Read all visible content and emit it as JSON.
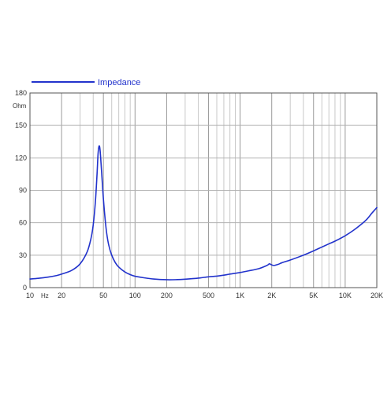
{
  "chart_data": {
    "type": "line",
    "title": "",
    "xlabel": "",
    "ylabel": "",
    "x_scale": "log",
    "xlim": [
      10,
      20000
    ],
    "ylim": [
      0,
      180
    ],
    "y_unit": "Ohm",
    "x_unit": "Hz",
    "grid": true,
    "legend_position": "top-left",
    "x_ticks": [
      {
        "value": 10,
        "label": "10"
      },
      {
        "value": 20,
        "label": "20"
      },
      {
        "value": 50,
        "label": "50"
      },
      {
        "value": 100,
        "label": "100"
      },
      {
        "value": 200,
        "label": "200"
      },
      {
        "value": 500,
        "label": "500"
      },
      {
        "value": 1000,
        "label": "1K"
      },
      {
        "value": 2000,
        "label": "2K"
      },
      {
        "value": 5000,
        "label": "5K"
      },
      {
        "value": 10000,
        "label": "10K"
      },
      {
        "value": 20000,
        "label": "20K"
      }
    ],
    "y_ticks": [
      {
        "value": 0,
        "label": "0"
      },
      {
        "value": 30,
        "label": "30"
      },
      {
        "value": 60,
        "label": "60"
      },
      {
        "value": 90,
        "label": "90"
      },
      {
        "value": 120,
        "label": "120"
      },
      {
        "value": 150,
        "label": "150"
      },
      {
        "value": 180,
        "label": "180"
      }
    ],
    "series": [
      {
        "name": "Impedance",
        "color": "#2233cc",
        "points": [
          [
            10,
            8
          ],
          [
            12,
            8.6
          ],
          [
            15,
            9.8
          ],
          [
            18,
            11.2
          ],
          [
            20,
            12.5
          ],
          [
            25,
            16
          ],
          [
            30,
            22
          ],
          [
            35,
            33
          ],
          [
            38,
            45
          ],
          [
            40,
            58
          ],
          [
            42,
            80
          ],
          [
            43.5,
            105
          ],
          [
            44.5,
            124
          ],
          [
            45.5,
            131
          ],
          [
            46.5,
            127
          ],
          [
            48,
            108
          ],
          [
            50,
            82
          ],
          [
            53,
            55
          ],
          [
            56,
            40
          ],
          [
            60,
            30
          ],
          [
            65,
            23
          ],
          [
            70,
            19
          ],
          [
            80,
            14.5
          ],
          [
            90,
            12
          ],
          [
            100,
            10.5
          ],
          [
            120,
            9.2
          ],
          [
            150,
            8
          ],
          [
            200,
            7.3
          ],
          [
            250,
            7.4
          ],
          [
            300,
            7.8
          ],
          [
            400,
            8.8
          ],
          [
            500,
            10
          ],
          [
            600,
            10.6
          ],
          [
            700,
            11.5
          ],
          [
            800,
            12.5
          ],
          [
            1000,
            14
          ],
          [
            1200,
            15.5
          ],
          [
            1500,
            17.5
          ],
          [
            1800,
            20.5
          ],
          [
            1900,
            22
          ],
          [
            2000,
            21
          ],
          [
            2100,
            20.5
          ],
          [
            2300,
            21.5
          ],
          [
            2500,
            23
          ],
          [
            3000,
            25.5
          ],
          [
            4000,
            30
          ],
          [
            5000,
            34
          ],
          [
            6000,
            37.5
          ],
          [
            7000,
            40.5
          ],
          [
            8000,
            43
          ],
          [
            10000,
            48
          ],
          [
            12000,
            53
          ],
          [
            14000,
            58
          ],
          [
            16000,
            63
          ],
          [
            18000,
            69
          ],
          [
            20000,
            74
          ]
        ]
      }
    ]
  }
}
